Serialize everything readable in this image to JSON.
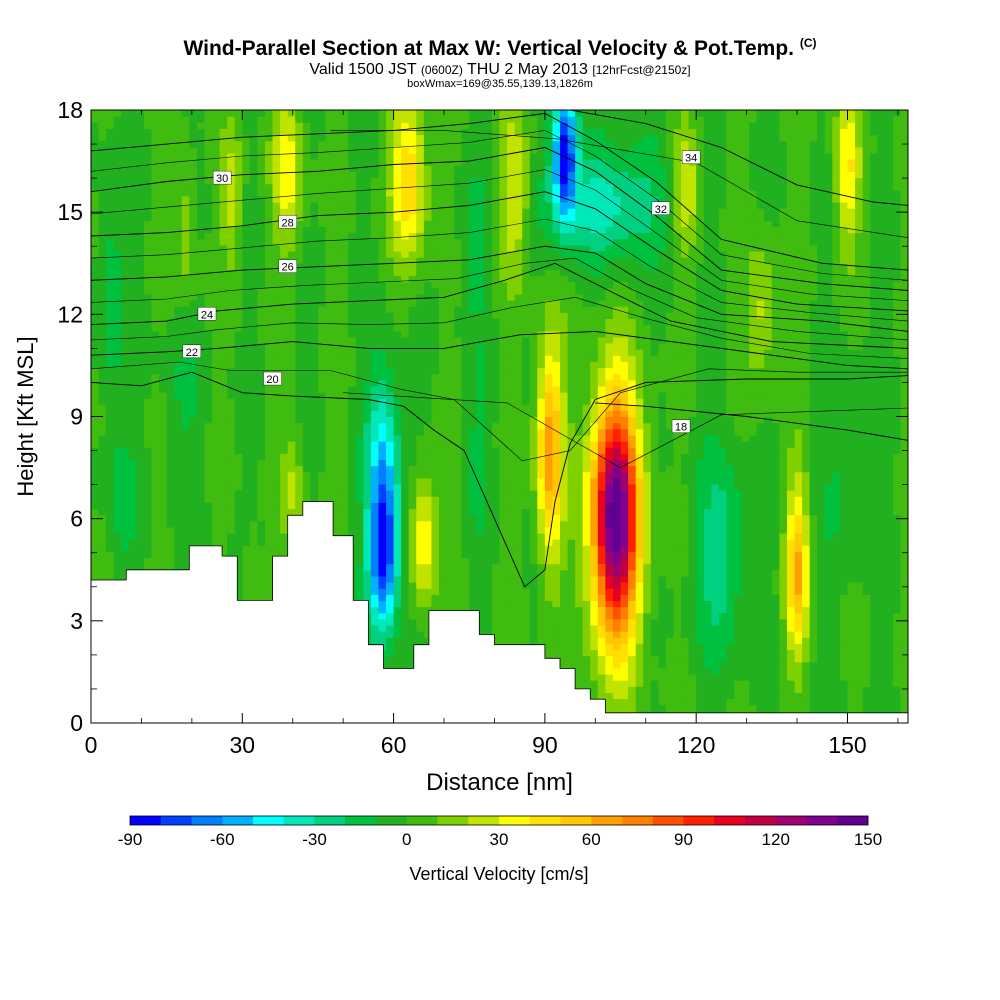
{
  "header": {
    "title": "Wind-Parallel Section at Max W: Vertical Velocity & Pot.Temp.",
    "copyright": "(C)",
    "valid_a": "Valid 1500 JST",
    "valid_b": "(0600Z)",
    "valid_c": "THU 2 May 2013",
    "valid_d": "[12hrFcst@2150z]",
    "subtitle2": "boxWmax=169@35.55,139.13,1826m"
  },
  "chart_data": {
    "type": "heatmap",
    "xlabel": "Distance [nm]",
    "ylabel": "Height [Kft MSL]",
    "xlim": [
      0,
      162
    ],
    "ylim": [
      0,
      18
    ],
    "x_ticks": [
      "0",
      "30",
      "60",
      "90",
      "120",
      "150"
    ],
    "y_ticks": [
      "0",
      "3",
      "6",
      "9",
      "12",
      "15",
      "18"
    ],
    "colorbar": {
      "label": "Vertical Velocity [cm/s]",
      "ticks": [
        "-90",
        "-60",
        "-30",
        "0",
        "30",
        "60",
        "90",
        "120",
        "150"
      ],
      "levels": [
        -90,
        -80,
        -70,
        -60,
        -50,
        -40,
        -30,
        -20,
        -10,
        0,
        10,
        20,
        30,
        40,
        50,
        60,
        70,
        80,
        90,
        100,
        110,
        120,
        130,
        140,
        150
      ],
      "colors": [
        "#0000ff",
        "#0040ff",
        "#0080ff",
        "#00b0ff",
        "#00ffff",
        "#00e8b8",
        "#00d080",
        "#00c040",
        "#20b020",
        "#40bc10",
        "#80d000",
        "#c0e400",
        "#ffff00",
        "#ffe000",
        "#ffc800",
        "#ffa000",
        "#ff8000",
        "#ff5000",
        "#ff2000",
        "#e80020",
        "#c00040",
        "#a00070",
        "#800090",
        "#600090"
      ]
    },
    "terrain": [
      [
        0,
        4.2
      ],
      [
        7,
        4.2
      ],
      [
        7,
        4.5
      ],
      [
        19.5,
        4.5
      ],
      [
        19.5,
        5.2
      ],
      [
        26,
        5.2
      ],
      [
        26,
        4.9
      ],
      [
        29,
        4.9
      ],
      [
        29,
        3.6
      ],
      [
        36,
        3.6
      ],
      [
        36,
        4.9
      ],
      [
        39,
        4.9
      ],
      [
        39,
        6.1
      ],
      [
        42,
        6.1
      ],
      [
        42,
        6.5
      ],
      [
        48,
        6.5
      ],
      [
        48,
        5.5
      ],
      [
        52,
        5.5
      ],
      [
        52,
        3.6
      ],
      [
        55,
        3.6
      ],
      [
        55,
        2.3
      ],
      [
        58,
        2.3
      ],
      [
        58,
        1.6
      ],
      [
        64,
        1.6
      ],
      [
        64,
        2.3
      ],
      [
        67,
        2.3
      ],
      [
        67,
        3.3
      ],
      [
        77,
        3.3
      ],
      [
        77,
        2.6
      ],
      [
        80,
        2.6
      ],
      [
        80,
        2.3
      ],
      [
        90,
        2.3
      ],
      [
        90,
        1.9
      ],
      [
        93,
        1.9
      ],
      [
        93,
        1.6
      ],
      [
        96,
        1.6
      ],
      [
        96,
        1.0
      ],
      [
        99,
        1.0
      ],
      [
        99,
        0.7
      ],
      [
        102,
        0.7
      ],
      [
        102,
        0.3
      ],
      [
        162,
        0.3
      ]
    ],
    "blobs": [
      {
        "x": 58,
        "y": 5.0,
        "sx": 3.0,
        "sy": 2.3,
        "v": -85
      },
      {
        "x": 58,
        "y": 8.2,
        "sx": 3.2,
        "sy": 2.5,
        "v": -40
      },
      {
        "x": 94,
        "y": 16.8,
        "sx": 2.4,
        "sy": 2.0,
        "v": -85
      },
      {
        "x": 103,
        "y": 15.3,
        "sx": 11,
        "sy": 1.7,
        "v": -35
      },
      {
        "x": 66,
        "y": 5.4,
        "sx": 2.5,
        "sy": 2.0,
        "v": 40
      },
      {
        "x": 91,
        "y": 8.0,
        "sx": 2.6,
        "sy": 3.2,
        "v": 70
      },
      {
        "x": 104,
        "y": 6.0,
        "sx": 4.8,
        "sy": 3.6,
        "v": 150
      },
      {
        "x": 140,
        "y": 4.5,
        "sx": 2.2,
        "sy": 2.5,
        "v": 60
      },
      {
        "x": 39,
        "y": 16.2,
        "sx": 3.0,
        "sy": 2.2,
        "v": 35
      },
      {
        "x": 63,
        "y": 16.0,
        "sx": 3.5,
        "sy": 2.4,
        "v": 50
      },
      {
        "x": 84,
        "y": 15.6,
        "sx": 3.0,
        "sy": 2.4,
        "v": 30
      },
      {
        "x": 118,
        "y": 15.8,
        "sx": 2.6,
        "sy": 2.0,
        "v": 30
      },
      {
        "x": 150,
        "y": 16.2,
        "sx": 2.4,
        "sy": 2.2,
        "v": 40
      },
      {
        "x": 28,
        "y": 15.5,
        "sx": 2.0,
        "sy": 2.0,
        "v": 25
      },
      {
        "x": 19,
        "y": 14.5,
        "sx": 2.0,
        "sy": 2.0,
        "v": 20
      },
      {
        "x": 133,
        "y": 12.0,
        "sx": 3.0,
        "sy": 2.0,
        "v": 25
      },
      {
        "x": 40,
        "y": 6.8,
        "sx": 2.2,
        "sy": 1.8,
        "v": 20
      },
      {
        "x": 32,
        "y": 4.5,
        "sx": 1.5,
        "sy": 1.2,
        "v": 15
      },
      {
        "x": 4,
        "y": 12.5,
        "sx": 2.4,
        "sy": 3.5,
        "v": -20
      },
      {
        "x": 6,
        "y": 6.5,
        "sx": 3.0,
        "sy": 2.0,
        "v": -15
      },
      {
        "x": 77,
        "y": 8.0,
        "sx": 2.6,
        "sy": 2.5,
        "v": -12
      },
      {
        "x": 125,
        "y": 5.0,
        "sx": 5.5,
        "sy": 3.0,
        "v": -25
      },
      {
        "x": 150,
        "y": 7.5,
        "sx": 5.0,
        "sy": 3.0,
        "v": -12
      },
      {
        "x": 18,
        "y": 9.5,
        "sx": 4.0,
        "sy": 2.5,
        "v": -10
      },
      {
        "x": 76,
        "y": 14.0,
        "sx": 3.0,
        "sy": 2.0,
        "v": -15
      }
    ],
    "isotherms": [
      {
        "label": "18",
        "pts": [
          [
            100,
            9.4
          ],
          [
            110,
            9.3
          ],
          [
            130,
            9.0
          ],
          [
            150,
            8.6
          ],
          [
            162,
            8.3
          ]
        ],
        "lx": 117,
        "ly": 8.7
      },
      {
        "label": "20",
        "pts": [
          [
            0,
            10.0
          ],
          [
            10,
            9.9
          ],
          [
            20,
            10.3
          ],
          [
            30,
            9.7
          ],
          [
            40,
            9.6
          ],
          [
            55,
            9.5
          ],
          [
            62,
            9.3
          ],
          [
            68,
            8.6
          ],
          [
            74,
            8.0
          ],
          [
            80,
            6.0
          ],
          [
            86,
            4.0
          ],
          [
            90,
            4.5
          ],
          [
            92,
            6.5
          ],
          [
            95,
            8.2
          ],
          [
            100,
            9.5
          ],
          [
            110,
            10.0
          ],
          [
            130,
            10.1
          ],
          [
            150,
            10.1
          ],
          [
            162,
            10.2
          ]
        ],
        "lx": 36,
        "ly": 10.1
      },
      {
        "label": "22",
        "pts": [
          [
            0,
            10.8
          ],
          [
            15,
            10.9
          ],
          [
            25,
            11.0
          ],
          [
            40,
            11.2
          ],
          [
            55,
            11.0
          ],
          [
            70,
            11.0
          ],
          [
            85,
            11.4
          ],
          [
            100,
            11.5
          ],
          [
            115,
            11.2
          ],
          [
            135,
            10.8
          ],
          [
            150,
            10.5
          ],
          [
            162,
            10.4
          ]
        ],
        "lx": 20,
        "ly": 10.9
      },
      {
        "label": "24",
        "pts": [
          [
            0,
            11.7
          ],
          [
            15,
            11.8
          ],
          [
            25,
            12.1
          ],
          [
            40,
            12.3
          ],
          [
            55,
            12.4
          ],
          [
            70,
            12.5
          ],
          [
            82,
            13.0
          ],
          [
            92,
            13.5
          ],
          [
            104,
            12.6
          ],
          [
            115,
            11.8
          ],
          [
            135,
            11.2
          ],
          [
            162,
            11.0
          ]
        ],
        "lx": 23,
        "ly": 12.0
      },
      {
        "label": "26",
        "pts": [
          [
            0,
            13.0
          ],
          [
            15,
            13.1
          ],
          [
            30,
            13.3
          ],
          [
            45,
            13.4
          ],
          [
            60,
            13.5
          ],
          [
            75,
            13.6
          ],
          [
            90,
            14.0
          ],
          [
            100,
            13.8
          ],
          [
            110,
            12.9
          ],
          [
            125,
            12.0
          ],
          [
            145,
            11.8
          ],
          [
            162,
            11.5
          ]
        ],
        "lx": 39,
        "ly": 13.4
      },
      {
        "label": "28",
        "pts": [
          [
            0,
            14.3
          ],
          [
            15,
            14.4
          ],
          [
            30,
            14.6
          ],
          [
            45,
            14.9
          ],
          [
            60,
            15.0
          ],
          [
            75,
            15.2
          ],
          [
            90,
            15.6
          ],
          [
            100,
            15.1
          ],
          [
            112,
            13.9
          ],
          [
            125,
            12.7
          ],
          [
            140,
            12.3
          ],
          [
            162,
            12.1
          ]
        ],
        "lx": 39,
        "ly": 14.7
      },
      {
        "label": "30",
        "pts": [
          [
            0,
            15.6
          ],
          [
            15,
            15.9
          ],
          [
            30,
            16.1
          ],
          [
            45,
            16.2
          ],
          [
            60,
            16.4
          ],
          [
            75,
            16.5
          ],
          [
            90,
            16.9
          ],
          [
            100,
            16.2
          ],
          [
            112,
            14.9
          ],
          [
            125,
            13.3
          ],
          [
            145,
            12.9
          ],
          [
            162,
            12.7
          ]
        ],
        "lx": 26,
        "ly": 16.0
      },
      {
        "label": "32",
        "pts": [
          [
            0,
            16.8
          ],
          [
            15,
            17.0
          ],
          [
            30,
            17.2
          ],
          [
            45,
            17.3
          ],
          [
            60,
            17.4
          ],
          [
            75,
            17.6
          ],
          [
            90,
            17.9
          ],
          [
            100,
            17.1
          ],
          [
            112,
            15.9
          ],
          [
            125,
            14.2
          ],
          [
            145,
            13.5
          ],
          [
            162,
            13.3
          ]
        ],
        "lx": 113,
        "ly": 15.1
      },
      {
        "label": "34",
        "pts": [
          [
            95,
            18.0
          ],
          [
            110,
            17.6
          ],
          [
            125,
            16.9
          ],
          [
            140,
            15.8
          ],
          [
            155,
            15.3
          ],
          [
            162,
            15.2
          ]
        ],
        "lx": 119,
        "ly": 16.6
      }
    ]
  }
}
